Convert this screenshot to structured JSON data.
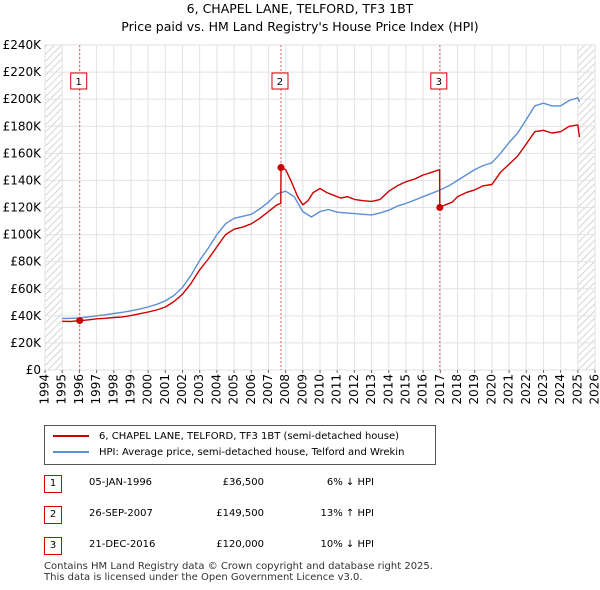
{
  "chart_data": {
    "type": "line",
    "title": "6, CHAPEL LANE, TELFORD, TF3 1BT",
    "subtitle": "Price paid vs. HM Land Registry's House Price Index (HPI)",
    "x_range": [
      1994,
      2026
    ],
    "ylim": [
      0,
      240000
    ],
    "y_ticks": [
      {
        "value": 0,
        "label": "£0"
      },
      {
        "value": 20000,
        "label": "£20K"
      },
      {
        "value": 40000,
        "label": "£40K"
      },
      {
        "value": 60000,
        "label": "£60K"
      },
      {
        "value": 80000,
        "label": "£80K"
      },
      {
        "value": 100000,
        "label": "£100K"
      },
      {
        "value": 120000,
        "label": "£120K"
      },
      {
        "value": 140000,
        "label": "£140K"
      },
      {
        "value": 160000,
        "label": "£160K"
      },
      {
        "value": 180000,
        "label": "£180K"
      },
      {
        "value": 200000,
        "label": "£200K"
      },
      {
        "value": 220000,
        "label": "£220K"
      },
      {
        "value": 240000,
        "label": "£240K"
      }
    ],
    "x_ticks": [
      "1994",
      "1995",
      "1996",
      "1997",
      "1998",
      "1999",
      "2000",
      "2001",
      "2002",
      "2003",
      "2004",
      "2005",
      "2006",
      "2007",
      "2008",
      "2009",
      "2010",
      "2011",
      "2012",
      "2013",
      "2014",
      "2015",
      "2016",
      "2017",
      "2018",
      "2019",
      "2020",
      "2021",
      "2022",
      "2023",
      "2024",
      "2025",
      "2026"
    ],
    "grid": true,
    "hatched_ranges": [
      [
        1994,
        1995
      ],
      [
        2025,
        2026
      ]
    ],
    "series": [
      {
        "name": "6, CHAPEL LANE, TELFORD, TF3 1BT (semi-detached house)",
        "color": "#cc0000",
        "points": [
          [
            1995.0,
            36000
          ],
          [
            1995.5,
            35800
          ],
          [
            1996.02,
            36500
          ],
          [
            1996.5,
            37000
          ],
          [
            1997.0,
            37800
          ],
          [
            1997.5,
            38200
          ],
          [
            1998.0,
            38800
          ],
          [
            1998.5,
            39200
          ],
          [
            1999.0,
            40200
          ],
          [
            1999.5,
            41500
          ],
          [
            2000.0,
            42800
          ],
          [
            2000.5,
            44300
          ],
          [
            2001.0,
            46500
          ],
          [
            2001.5,
            50500
          ],
          [
            2002.0,
            56000
          ],
          [
            2002.5,
            64000
          ],
          [
            2003.0,
            74000
          ],
          [
            2003.5,
            82000
          ],
          [
            2004.0,
            91000
          ],
          [
            2004.5,
            100000
          ],
          [
            2005.0,
            104000
          ],
          [
            2005.5,
            105500
          ],
          [
            2006.0,
            108000
          ],
          [
            2006.5,
            112000
          ],
          [
            2007.0,
            117000
          ],
          [
            2007.5,
            122000
          ],
          [
            2007.72,
            123000
          ],
          [
            2007.73,
            149500
          ],
          [
            2008.0,
            148000
          ],
          [
            2008.3,
            140000
          ],
          [
            2008.7,
            128000
          ],
          [
            2009.0,
            122000
          ],
          [
            2009.3,
            125000
          ],
          [
            2009.6,
            131000
          ],
          [
            2010.0,
            134000
          ],
          [
            2010.4,
            131000
          ],
          [
            2010.8,
            129000
          ],
          [
            2011.2,
            127000
          ],
          [
            2011.6,
            128000
          ],
          [
            2012.0,
            126000
          ],
          [
            2012.5,
            125000
          ],
          [
            2013.0,
            124500
          ],
          [
            2013.5,
            126000
          ],
          [
            2014.0,
            132000
          ],
          [
            2014.5,
            136000
          ],
          [
            2015.0,
            139000
          ],
          [
            2015.5,
            141000
          ],
          [
            2016.0,
            144000
          ],
          [
            2016.5,
            146000
          ],
          [
            2016.96,
            148000
          ],
          [
            2016.97,
            120000
          ],
          [
            2017.3,
            122000
          ],
          [
            2017.7,
            124000
          ],
          [
            2018.0,
            128000
          ],
          [
            2018.5,
            131000
          ],
          [
            2019.0,
            133000
          ],
          [
            2019.5,
            136000
          ],
          [
            2020.0,
            137000
          ],
          [
            2020.5,
            146000
          ],
          [
            2021.0,
            152000
          ],
          [
            2021.5,
            158000
          ],
          [
            2022.0,
            167000
          ],
          [
            2022.5,
            176000
          ],
          [
            2023.0,
            177000
          ],
          [
            2023.5,
            175000
          ],
          [
            2024.0,
            176000
          ],
          [
            2024.5,
            180000
          ],
          [
            2025.0,
            181000
          ],
          [
            2025.1,
            172000
          ]
        ]
      },
      {
        "name": "HPI: Average price, semi-detached house, Telford and Wrekin",
        "color": "#5b8fd6",
        "points": [
          [
            1995.0,
            38000
          ],
          [
            1995.5,
            38200
          ],
          [
            1996.0,
            38500
          ],
          [
            1996.5,
            39200
          ],
          [
            1997.0,
            40000
          ],
          [
            1997.5,
            40800
          ],
          [
            1998.0,
            41700
          ],
          [
            1998.5,
            42600
          ],
          [
            1999.0,
            43700
          ],
          [
            1999.5,
            45000
          ],
          [
            2000.0,
            46500
          ],
          [
            2000.5,
            48500
          ],
          [
            2001.0,
            51000
          ],
          [
            2001.5,
            55000
          ],
          [
            2002.0,
            61000
          ],
          [
            2002.5,
            70000
          ],
          [
            2003.0,
            81000
          ],
          [
            2003.5,
            90000
          ],
          [
            2004.0,
            100000
          ],
          [
            2004.5,
            108000
          ],
          [
            2005.0,
            112000
          ],
          [
            2005.5,
            113500
          ],
          [
            2006.0,
            115000
          ],
          [
            2006.5,
            119000
          ],
          [
            2007.0,
            124000
          ],
          [
            2007.5,
            130000
          ],
          [
            2008.0,
            132000
          ],
          [
            2008.5,
            128000
          ],
          [
            2009.0,
            117000
          ],
          [
            2009.5,
            113000
          ],
          [
            2010.0,
            117000
          ],
          [
            2010.5,
            118500
          ],
          [
            2011.0,
            116500
          ],
          [
            2011.5,
            116000
          ],
          [
            2012.0,
            115500
          ],
          [
            2012.5,
            115000
          ],
          [
            2013.0,
            114500
          ],
          [
            2013.5,
            116000
          ],
          [
            2014.0,
            118000
          ],
          [
            2014.5,
            121000
          ],
          [
            2015.0,
            123000
          ],
          [
            2015.5,
            125500
          ],
          [
            2016.0,
            128000
          ],
          [
            2016.5,
            130500
          ],
          [
            2017.0,
            133000
          ],
          [
            2017.5,
            136000
          ],
          [
            2018.0,
            140000
          ],
          [
            2018.5,
            144000
          ],
          [
            2019.0,
            148000
          ],
          [
            2019.5,
            151000
          ],
          [
            2020.0,
            153000
          ],
          [
            2020.5,
            160000
          ],
          [
            2021.0,
            168000
          ],
          [
            2021.5,
            175000
          ],
          [
            2022.0,
            185000
          ],
          [
            2022.5,
            195000
          ],
          [
            2023.0,
            197000
          ],
          [
            2023.5,
            195000
          ],
          [
            2024.0,
            195000
          ],
          [
            2024.5,
            199000
          ],
          [
            2025.0,
            201000
          ],
          [
            2025.1,
            198000
          ]
        ]
      }
    ],
    "sales": [
      {
        "num": "1",
        "x": 1996.02,
        "price": 36500,
        "date": "05-JAN-1996",
        "price_label": "£36,500",
        "hpi": "6% ↓ HPI"
      },
      {
        "num": "2",
        "x": 2007.73,
        "price": 149500,
        "date": "26-SEP-2007",
        "price_label": "£149,500",
        "hpi": "13% ↑ HPI"
      },
      {
        "num": "3",
        "x": 2016.97,
        "price": 120000,
        "date": "21-DEC-2016",
        "price_label": "£120,000",
        "hpi": "10% ↓ HPI"
      }
    ],
    "legend_position": "bottom-left"
  },
  "footer": {
    "line1": "Contains HM Land Registry data © Crown copyright and database right 2025.",
    "line2": "This data is licensed under the Open Government Licence v3.0."
  }
}
